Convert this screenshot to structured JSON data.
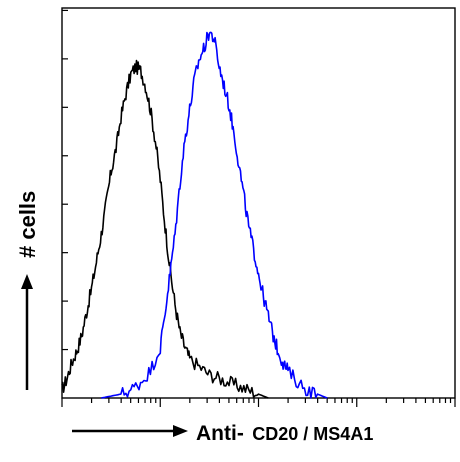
{
  "chart_data": {
    "type": "line",
    "title": "",
    "xlabel_prefix": "Anti-",
    "xlabel_target": "CD20 / MS4A1",
    "ylabel": "# cells",
    "x_scale": "log",
    "xlim_decades": [
      0,
      4
    ],
    "y_ticks": 8,
    "grid": false,
    "legend": "none",
    "series": [
      {
        "color": "#000000",
        "points": [
          [
            0.0,
            0.02
          ],
          [
            0.05,
            0.05
          ],
          [
            0.1,
            0.09
          ],
          [
            0.15,
            0.12
          ],
          [
            0.2,
            0.16
          ],
          [
            0.25,
            0.22
          ],
          [
            0.3,
            0.28
          ],
          [
            0.35,
            0.35
          ],
          [
            0.4,
            0.42
          ],
          [
            0.45,
            0.5
          ],
          [
            0.5,
            0.58
          ],
          [
            0.55,
            0.64
          ],
          [
            0.6,
            0.72
          ],
          [
            0.65,
            0.78
          ],
          [
            0.7,
            0.83
          ],
          [
            0.75,
            0.85
          ],
          [
            0.8,
            0.84
          ],
          [
            0.85,
            0.8
          ],
          [
            0.9,
            0.74
          ],
          [
            0.95,
            0.66
          ],
          [
            1.0,
            0.56
          ],
          [
            1.05,
            0.44
          ],
          [
            1.1,
            0.33
          ],
          [
            1.15,
            0.24
          ],
          [
            1.2,
            0.17
          ],
          [
            1.25,
            0.13
          ],
          [
            1.3,
            0.1
          ],
          [
            1.4,
            0.08
          ],
          [
            1.5,
            0.06
          ],
          [
            1.6,
            0.05
          ],
          [
            1.7,
            0.04
          ],
          [
            1.8,
            0.03
          ],
          [
            1.9,
            0.02
          ],
          [
            2.0,
            0.01
          ],
          [
            2.1,
            0.0
          ]
        ]
      },
      {
        "color": "#0000ff",
        "points": [
          [
            0.4,
            0.0
          ],
          [
            0.5,
            0.005
          ],
          [
            0.6,
            0.01
          ],
          [
            0.7,
            0.02
          ],
          [
            0.8,
            0.04
          ],
          [
            0.9,
            0.07
          ],
          [
            1.0,
            0.13
          ],
          [
            1.05,
            0.22
          ],
          [
            1.1,
            0.32
          ],
          [
            1.15,
            0.42
          ],
          [
            1.2,
            0.55
          ],
          [
            1.25,
            0.66
          ],
          [
            1.3,
            0.74
          ],
          [
            1.35,
            0.82
          ],
          [
            1.4,
            0.87
          ],
          [
            1.45,
            0.9
          ],
          [
            1.5,
            0.94
          ],
          [
            1.55,
            0.92
          ],
          [
            1.6,
            0.85
          ],
          [
            1.65,
            0.8
          ],
          [
            1.7,
            0.75
          ],
          [
            1.75,
            0.68
          ],
          [
            1.8,
            0.6
          ],
          [
            1.85,
            0.52
          ],
          [
            1.9,
            0.44
          ],
          [
            1.95,
            0.38
          ],
          [
            2.0,
            0.32
          ],
          [
            2.05,
            0.26
          ],
          [
            2.1,
            0.21
          ],
          [
            2.15,
            0.16
          ],
          [
            2.2,
            0.12
          ],
          [
            2.25,
            0.09
          ],
          [
            2.3,
            0.07
          ],
          [
            2.4,
            0.04
          ],
          [
            2.5,
            0.02
          ],
          [
            2.6,
            0.01
          ],
          [
            2.7,
            0.0
          ]
        ]
      }
    ]
  }
}
